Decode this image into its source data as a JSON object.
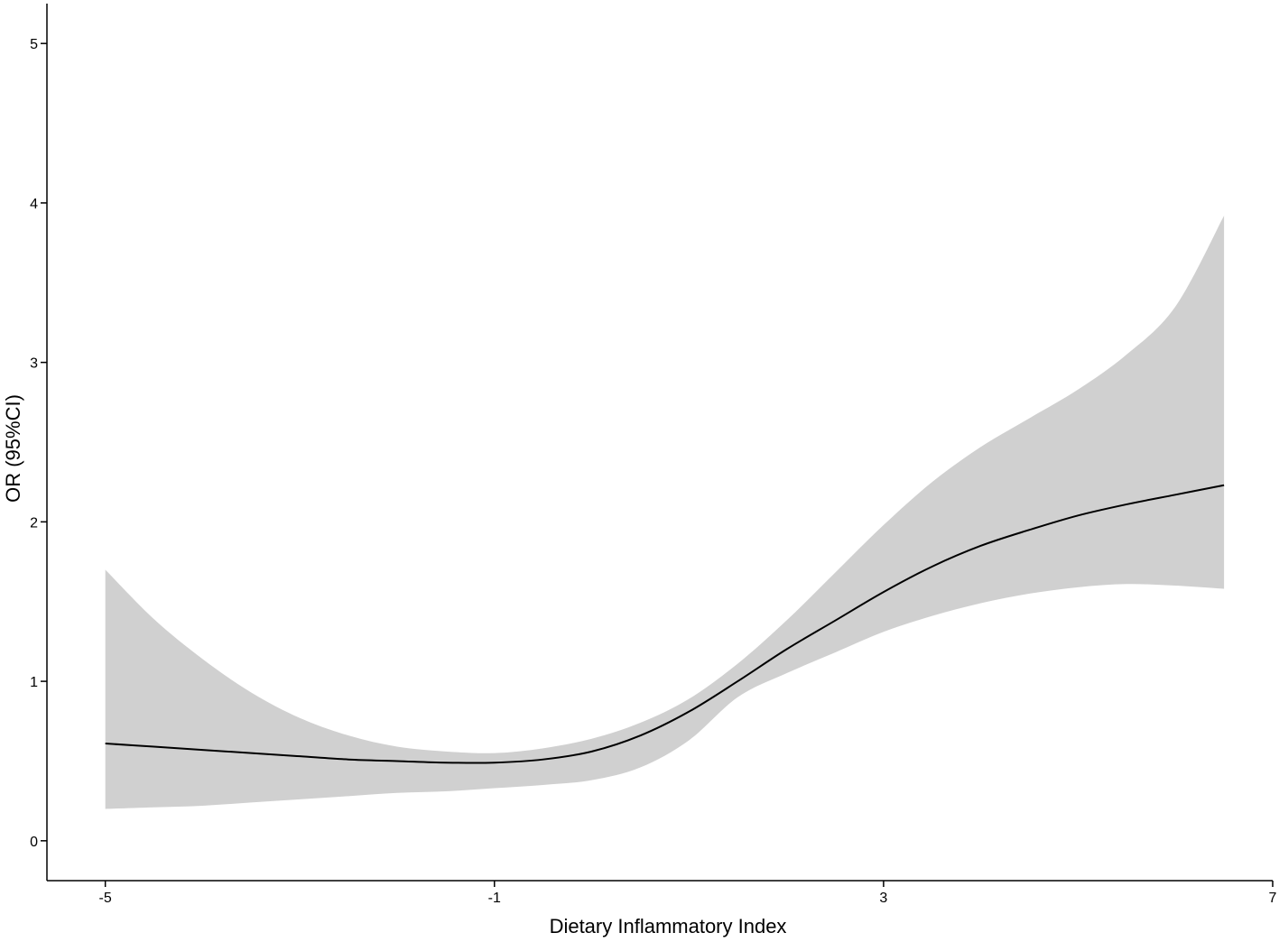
{
  "chart_data": {
    "type": "line",
    "title": "",
    "xlabel": "Dietary Inflammatory Index",
    "ylabel": "OR (95%CI)",
    "xlim": [
      -5.6,
      7
    ],
    "ylim": [
      -0.25,
      5.25
    ],
    "xticks": [
      -5,
      -1,
      3,
      7
    ],
    "xtick_labels": [
      "-5",
      "-1",
      "3",
      "7"
    ],
    "yticks": [
      0,
      1,
      2,
      3,
      4,
      5
    ],
    "ytick_labels": [
      "0",
      "1",
      "2",
      "3",
      "4",
      "5"
    ],
    "grid": false,
    "legend": "none",
    "colors": {
      "line": "#000000",
      "band": "#d0d0d0",
      "axis": "#000000"
    },
    "series": [
      {
        "x": [
          -5.0,
          -4.5,
          -4.0,
          -3.5,
          -3.0,
          -2.5,
          -2.0,
          -1.5,
          -1.0,
          -0.5,
          0.0,
          0.5,
          1.0,
          1.5,
          2.0,
          2.5,
          3.0,
          3.5,
          4.0,
          4.5,
          5.0,
          5.5,
          6.0,
          6.5
        ],
        "y": [
          0.61,
          0.59,
          0.57,
          0.55,
          0.53,
          0.51,
          0.5,
          0.49,
          0.49,
          0.51,
          0.56,
          0.66,
          0.81,
          1.0,
          1.2,
          1.38,
          1.56,
          1.72,
          1.85,
          1.95,
          2.04,
          2.11,
          2.17,
          2.23
        ],
        "lower": [
          0.2,
          0.21,
          0.22,
          0.24,
          0.26,
          0.28,
          0.3,
          0.31,
          0.33,
          0.35,
          0.38,
          0.46,
          0.63,
          0.9,
          1.05,
          1.18,
          1.31,
          1.41,
          1.49,
          1.55,
          1.59,
          1.61,
          1.6,
          1.58
        ],
        "upper": [
          1.7,
          1.39,
          1.14,
          0.93,
          0.77,
          0.66,
          0.59,
          0.56,
          0.55,
          0.58,
          0.64,
          0.74,
          0.89,
          1.11,
          1.38,
          1.68,
          1.98,
          2.25,
          2.47,
          2.65,
          2.83,
          3.05,
          3.35,
          3.92
        ]
      }
    ]
  }
}
